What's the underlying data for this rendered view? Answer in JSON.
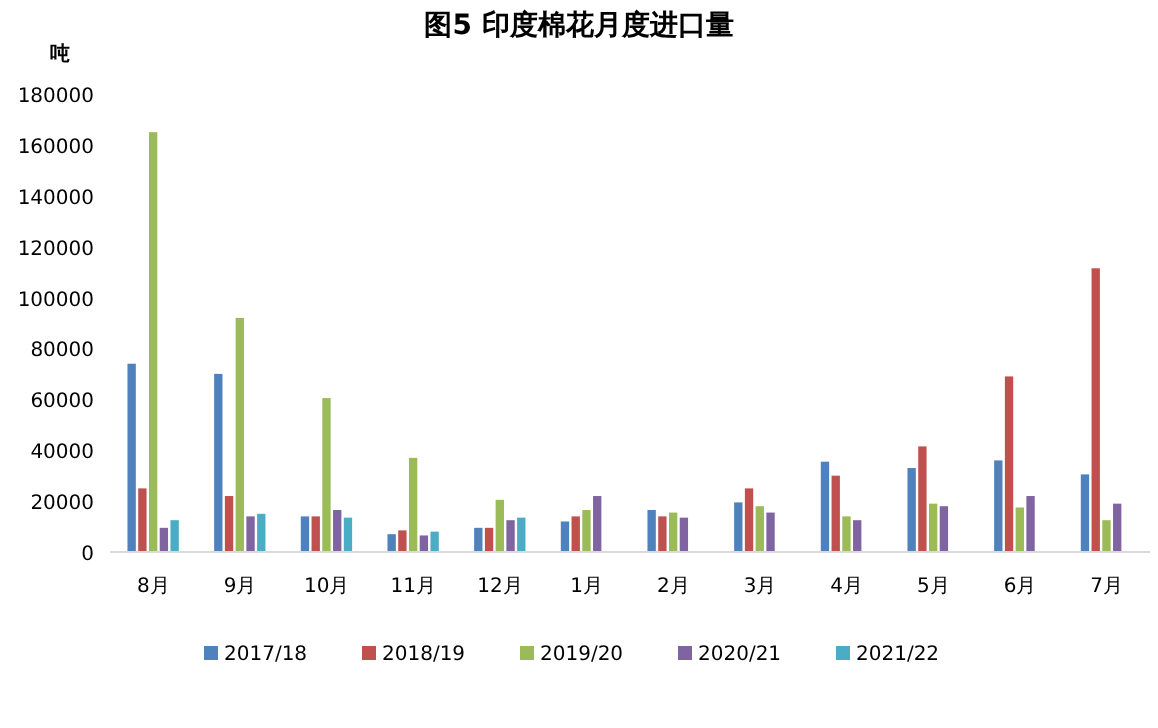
{
  "chart_data": {
    "type": "bar",
    "title": "图5  印度棉花月度进口量",
    "ylabel": "吨",
    "categories": [
      "8月",
      "9月",
      "10月",
      "11月",
      "12月",
      "1月",
      "2月",
      "3月",
      "4月",
      "5月",
      "6月",
      "7月"
    ],
    "series": [
      {
        "name": "2017/18",
        "color": "#4f81bd",
        "values": [
          74000,
          70000,
          14000,
          7000,
          9500,
          12000,
          16500,
          19500,
          35500,
          33000,
          36000,
          30500
        ]
      },
      {
        "name": "2018/19",
        "color": "#c0504d",
        "values": [
          25000,
          22000,
          14000,
          8500,
          9500,
          14000,
          14000,
          25000,
          30000,
          41500,
          69000,
          111500
        ]
      },
      {
        "name": "2019/20",
        "color": "#9bbb59",
        "values": [
          165000,
          92000,
          60500,
          37000,
          20500,
          16500,
          15500,
          18000,
          14000,
          19000,
          17500,
          12500
        ]
      },
      {
        "name": "2020/21",
        "color": "#8064a2",
        "values": [
          9500,
          14000,
          16500,
          6500,
          12500,
          22000,
          13500,
          15500,
          12500,
          18000,
          22000,
          19000
        ]
      },
      {
        "name": "2021/22",
        "color": "#4bacc6",
        "values": [
          12500,
          15000,
          13500,
          8000,
          13500,
          null,
          null,
          null,
          null,
          null,
          null,
          null
        ]
      }
    ],
    "ylim": [
      0,
      180000
    ],
    "yticks": [
      0,
      20000,
      40000,
      60000,
      80000,
      100000,
      120000,
      140000,
      160000,
      180000
    ],
    "legend": "bottom",
    "grid": false
  }
}
